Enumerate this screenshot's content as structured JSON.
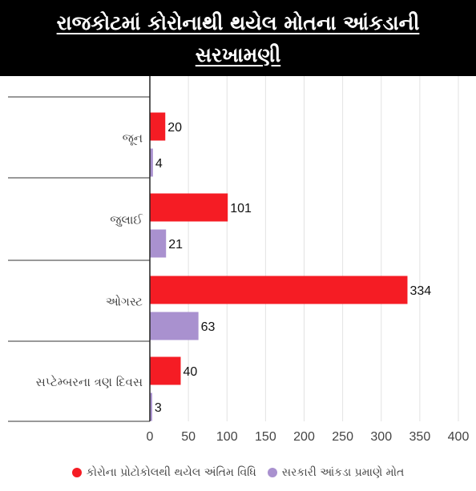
{
  "title": {
    "line1": "રાજકોટમાં કોરોનાથી થયેલ મોતના આંકડાની",
    "line2": "સરખામણી"
  },
  "colors": {
    "series_protocol": "#f51c24",
    "series_official": "#a991cf"
  },
  "chart_data": {
    "type": "bar",
    "orientation": "horizontal",
    "title": "રાજકોટમાં કોરોનાથી થયેલ મોતના આંકડાની સરખામણી",
    "categories": [
      "જૂન",
      "જુલાઈ",
      "ઓગસ્ટ",
      "સપ્ટેમ્બરના ત્રણ દિવસ"
    ],
    "series": [
      {
        "name": "કોરોના પ્રોટોકોલથી થયેલ અંતિમ વિધિ",
        "values": [
          20,
          101,
          334,
          40
        ]
      },
      {
        "name": "સરકારી આંકડા પ્રમાણે મોત",
        "values": [
          4,
          21,
          63,
          3
        ]
      }
    ],
    "xlim": [
      0,
      400
    ],
    "x_ticks": [
      "0",
      "50",
      "100",
      "150",
      "200",
      "250",
      "300",
      "350",
      "400"
    ],
    "grid": true,
    "legend_position": "bottom"
  }
}
